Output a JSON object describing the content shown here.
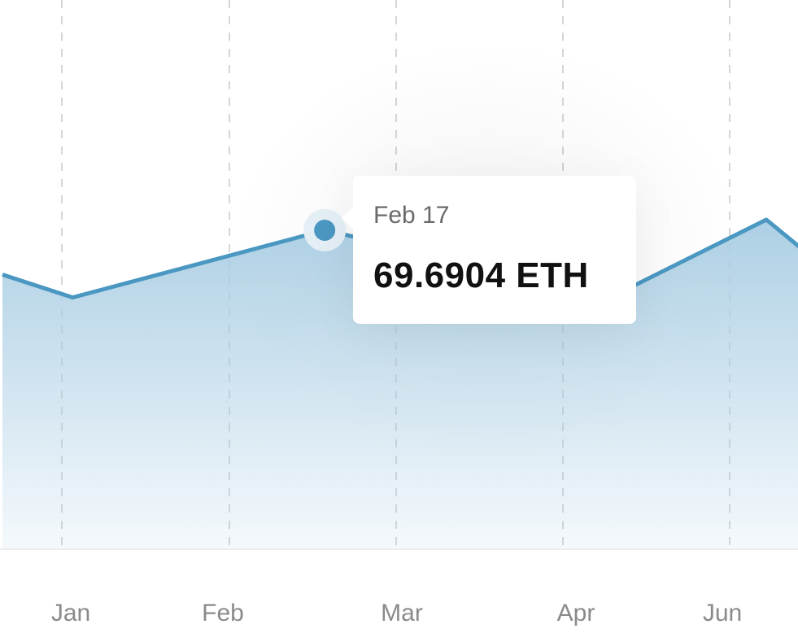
{
  "chart_data": {
    "type": "area",
    "x_tick_labels": [
      "Jan",
      "Feb",
      "Mar",
      "Apr",
      "Jun"
    ],
    "points": [
      {
        "x": "Dec 28",
        "y": 60.0
      },
      {
        "x": "Jan 3",
        "y": 55.0
      },
      {
        "x": "Feb 17",
        "y": 69.6904
      },
      {
        "x": "Apr 20",
        "y": 55.5
      },
      {
        "x": "Jun 12",
        "y": 72.0
      },
      {
        "x": "Jun 22",
        "y": 66.0
      }
    ],
    "ylim": [
      0,
      120
    ],
    "grid": "vertical dashed",
    "colors": {
      "line": "#4a97c2",
      "fill": "#a9cde3",
      "grid": "#d6d6d6"
    }
  },
  "tooltip": {
    "date": "Feb 17",
    "value": "69.6904 ETH"
  }
}
